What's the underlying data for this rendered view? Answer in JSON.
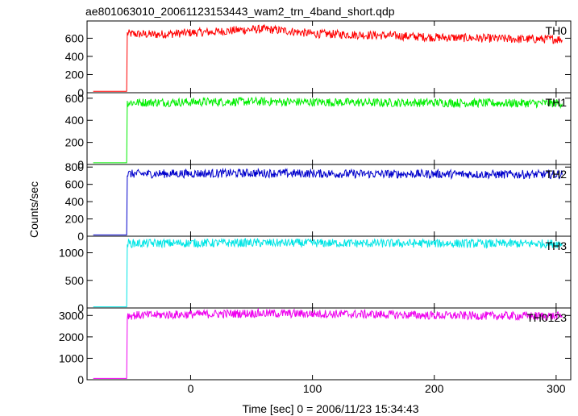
{
  "title": "ae801063010_20061123153443_wam2_trn_4band_short.qdp",
  "xlabel": "Time [sec] 0 = 2006/11/23 15:34:43",
  "ylabel": "Counts/sec",
  "chart_data": {
    "type": "line",
    "title": "ae801063010_20061123153443_wam2_trn_4band_short.qdp",
    "xlabel": "Time [sec] 0 = 2006/11/23 15:34:43",
    "ylabel": "Counts/sec",
    "xlim": [
      -85,
      312
    ],
    "xticks": [
      0,
      100,
      200,
      300
    ],
    "x_trigger": -52,
    "panels": [
      {
        "name": "TH0",
        "color": "#ff0000",
        "ylim": [
          0,
          790
        ],
        "yticks": [
          0,
          200,
          400,
          600
        ],
        "baseline": 15,
        "points": [
          [
            -80,
            15
          ],
          [
            -53,
            15
          ],
          [
            -52,
            650
          ],
          [
            -30,
            640
          ],
          [
            0,
            660
          ],
          [
            20,
            670
          ],
          [
            40,
            690
          ],
          [
            60,
            700
          ],
          [
            80,
            680
          ],
          [
            100,
            650
          ],
          [
            130,
            640
          ],
          [
            160,
            630
          ],
          [
            200,
            610
          ],
          [
            240,
            600
          ],
          [
            270,
            590
          ],
          [
            305,
            590
          ]
        ]
      },
      {
        "name": "TH1",
        "color": "#00ee00",
        "ylim": [
          0,
          650
        ],
        "yticks": [
          0,
          200,
          400,
          600
        ],
        "baseline": 15,
        "points": [
          [
            -80,
            15
          ],
          [
            -53,
            15
          ],
          [
            -52,
            560
          ],
          [
            0,
            565
          ],
          [
            50,
            570
          ],
          [
            100,
            565
          ],
          [
            150,
            560
          ],
          [
            200,
            560
          ],
          [
            250,
            555
          ],
          [
            305,
            555
          ]
        ]
      },
      {
        "name": "TH2",
        "color": "#0000cc",
        "ylim": [
          0,
          830
        ],
        "yticks": [
          0,
          200,
          400,
          600,
          800
        ],
        "baseline": 15,
        "points": [
          [
            -80,
            15
          ],
          [
            -53,
            15
          ],
          [
            -52,
            720
          ],
          [
            0,
            725
          ],
          [
            50,
            730
          ],
          [
            100,
            725
          ],
          [
            150,
            720
          ],
          [
            200,
            720
          ],
          [
            250,
            715
          ],
          [
            305,
            715
          ]
        ]
      },
      {
        "name": "TH3",
        "color": "#00e5e5",
        "ylim": [
          0,
          1300
        ],
        "yticks": [
          0,
          500,
          1000
        ],
        "baseline": 20,
        "points": [
          [
            -80,
            20
          ],
          [
            -53,
            20
          ],
          [
            -52,
            1170
          ],
          [
            0,
            1175
          ],
          [
            50,
            1180
          ],
          [
            100,
            1175
          ],
          [
            150,
            1170
          ],
          [
            200,
            1170
          ],
          [
            250,
            1165
          ],
          [
            305,
            1165
          ]
        ]
      },
      {
        "name": "TH0123",
        "color": "#ee00ee",
        "ylim": [
          0,
          3350
        ],
        "yticks": [
          0,
          1000,
          2000,
          3000
        ],
        "baseline": 60,
        "points": [
          [
            -80,
            60
          ],
          [
            -53,
            60
          ],
          [
            -52,
            3000
          ],
          [
            0,
            3050
          ],
          [
            50,
            3100
          ],
          [
            100,
            3080
          ],
          [
            150,
            3050
          ],
          [
            200,
            3000
          ],
          [
            250,
            2980
          ],
          [
            305,
            2970
          ]
        ]
      }
    ]
  }
}
